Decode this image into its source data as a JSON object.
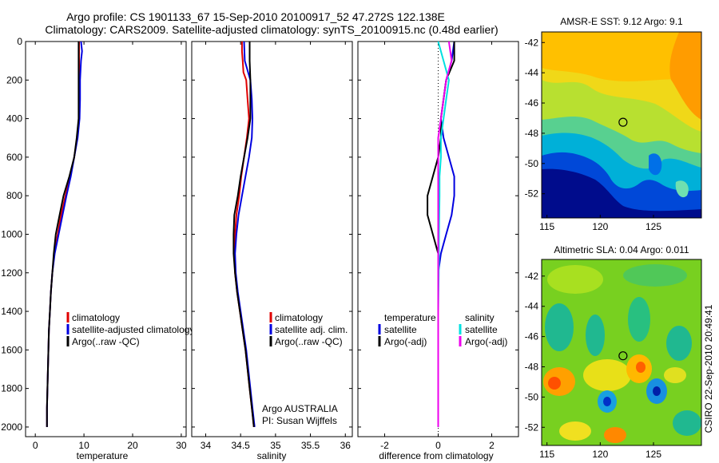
{
  "title_line1": "Argo profile: CS 1901133_67 15-Sep-2010 20100917_52 47.272S 122.138E",
  "title_line2": "Climatology: CARS2009. Satellite-adjusted climatology: synTS_20100915.nc (0.48d earlier)",
  "chart_data": [
    {
      "id": "temperature",
      "type": "line",
      "xlabel": "temperature",
      "ylabel": "",
      "xlim": [
        -2,
        31
      ],
      "ylim": [
        2050,
        0
      ],
      "y_reversed": true,
      "xticks": [
        0,
        10,
        20,
        30
      ],
      "yticks": [
        0,
        200,
        400,
        600,
        800,
        1000,
        1200,
        1400,
        1600,
        1800,
        2000
      ],
      "legend": {
        "placement": "lower-middle",
        "entries": [
          "climatology",
          "satellite-adjusted climatology",
          "Argo(..raw -QC)"
        ]
      },
      "series": [
        {
          "name": "climatology",
          "color": "#e00000",
          "points": [
            [
              9.0,
              0
            ],
            [
              9.0,
              100
            ],
            [
              9.0,
              200
            ],
            [
              9.0,
              300
            ],
            [
              9.0,
              400
            ],
            [
              8.6,
              500
            ],
            [
              8.0,
              600
            ],
            [
              7.2,
              700
            ],
            [
              6.2,
              800
            ],
            [
              5.3,
              900
            ],
            [
              4.6,
              1000
            ],
            [
              3.9,
              1100
            ],
            [
              3.5,
              1200
            ],
            [
              3.2,
              1300
            ],
            [
              3.0,
              1400
            ],
            [
              2.8,
              1500
            ],
            [
              2.7,
              1600
            ],
            [
              2.6,
              1700
            ],
            [
              2.5,
              1800
            ],
            [
              2.4,
              1900
            ],
            [
              2.4,
              2000
            ]
          ]
        },
        {
          "name": "satellite-adjusted climatology",
          "color": "#0000e0",
          "points": [
            [
              9.4,
              0
            ],
            [
              9.6,
              50
            ],
            [
              9.4,
              100
            ],
            [
              9.2,
              200
            ],
            [
              9.2,
              300
            ],
            [
              9.1,
              400
            ],
            [
              8.7,
              500
            ],
            [
              8.0,
              600
            ],
            [
              7.3,
              700
            ],
            [
              6.4,
              800
            ],
            [
              5.6,
              900
            ],
            [
              4.8,
              1000
            ],
            [
              4.0,
              1100
            ],
            [
              3.5,
              1200
            ],
            [
              3.2,
              1300
            ],
            [
              3.0,
              1400
            ],
            [
              2.8,
              1500
            ],
            [
              2.7,
              1600
            ],
            [
              2.6,
              1700
            ],
            [
              2.5,
              1800
            ],
            [
              2.4,
              1900
            ],
            [
              2.4,
              2000
            ]
          ]
        },
        {
          "name": "Argo(..raw -QC)",
          "color": "#000000",
          "points": [
            [
              8.9,
              0
            ],
            [
              8.9,
              200
            ],
            [
              8.9,
              400
            ],
            [
              8.5,
              500
            ],
            [
              8.0,
              600
            ],
            [
              7.0,
              700
            ],
            [
              5.8,
              800
            ],
            [
              5.0,
              900
            ],
            [
              4.2,
              1000
            ],
            [
              3.8,
              1100
            ],
            [
              3.5,
              1200
            ],
            [
              3.2,
              1300
            ],
            [
              3.0,
              1400
            ],
            [
              2.8,
              1500
            ],
            [
              2.7,
              1600
            ],
            [
              2.6,
              1700
            ],
            [
              2.5,
              1800
            ],
            [
              2.4,
              1900
            ],
            [
              2.4,
              2000
            ]
          ]
        }
      ]
    },
    {
      "id": "salinity",
      "type": "line",
      "xlabel": "salinity",
      "ylabel": "",
      "xlim": [
        33.8,
        36.1
      ],
      "ylim": [
        2050,
        0
      ],
      "y_reversed": true,
      "xticks": [
        34,
        34.5,
        35,
        35.5,
        36
      ],
      "yticks": [
        0,
        200,
        400,
        600,
        800,
        1000,
        1200,
        1400,
        1600,
        1800,
        2000
      ],
      "legend": {
        "placement": "lower-right",
        "entries": [
          "climatology",
          "satellite adj. clim.",
          "Argo(..raw -QC)"
        ]
      },
      "annotations": [
        "Argo AUSTRALIA",
        "PI: Susan Wijffels"
      ],
      "series": [
        {
          "name": "climatology",
          "color": "#e00000",
          "points": [
            [
              34.52,
              0
            ],
            [
              34.52,
              50
            ],
            [
              34.53,
              100
            ],
            [
              34.54,
              160
            ],
            [
              34.58,
              200
            ],
            [
              34.6,
              300
            ],
            [
              34.62,
              400
            ],
            [
              34.59,
              500
            ],
            [
              34.55,
              600
            ],
            [
              34.51,
              700
            ],
            [
              34.48,
              800
            ],
            [
              34.44,
              900
            ],
            [
              34.42,
              1000
            ],
            [
              34.41,
              1100
            ],
            [
              34.42,
              1200
            ],
            [
              34.45,
              1300
            ],
            [
              34.49,
              1400
            ],
            [
              34.53,
              1500
            ],
            [
              34.57,
              1600
            ],
            [
              34.6,
              1700
            ],
            [
              34.63,
              1800
            ],
            [
              34.66,
              1900
            ],
            [
              34.69,
              2000
            ]
          ]
        },
        {
          "name": "satellite adj. clim.",
          "color": "#0000e0",
          "points": [
            [
              34.55,
              0
            ],
            [
              34.56,
              100
            ],
            [
              34.64,
              200
            ],
            [
              34.66,
              300
            ],
            [
              34.67,
              400
            ],
            [
              34.66,
              500
            ],
            [
              34.62,
              600
            ],
            [
              34.57,
              700
            ],
            [
              34.52,
              800
            ],
            [
              34.47,
              900
            ],
            [
              34.44,
              1000
            ],
            [
              34.42,
              1100
            ],
            [
              34.43,
              1200
            ],
            [
              34.46,
              1300
            ],
            [
              34.5,
              1400
            ],
            [
              34.54,
              1500
            ],
            [
              34.58,
              1600
            ],
            [
              34.61,
              1700
            ],
            [
              34.64,
              1800
            ],
            [
              34.67,
              1900
            ],
            [
              34.7,
              2000
            ]
          ]
        },
        {
          "name": "Argo(..raw -QC)",
          "color": "#000000",
          "points": [
            [
              34.63,
              0
            ],
            [
              34.63,
              100
            ],
            [
              34.64,
              200
            ],
            [
              34.64,
              300
            ],
            [
              34.64,
              400
            ],
            [
              34.6,
              500
            ],
            [
              34.55,
              600
            ],
            [
              34.5,
              700
            ],
            [
              34.46,
              800
            ],
            [
              34.41,
              900
            ],
            [
              34.4,
              1000
            ],
            [
              34.4,
              1100
            ],
            [
              34.42,
              1200
            ],
            [
              34.45,
              1300
            ],
            [
              34.49,
              1400
            ],
            [
              34.53,
              1500
            ],
            [
              34.57,
              1600
            ],
            [
              34.6,
              1700
            ],
            [
              34.63,
              1800
            ],
            [
              34.66,
              1900
            ],
            [
              34.69,
              2000
            ]
          ]
        }
      ]
    },
    {
      "id": "difference",
      "type": "line",
      "xlabel": "difference from climatology",
      "ylabel": "",
      "xlim": [
        -3,
        3
      ],
      "ylim": [
        2050,
        0
      ],
      "y_reversed": true,
      "xticks": [
        -2,
        0,
        2
      ],
      "yticks": [
        0,
        200,
        400,
        600,
        800,
        1000,
        1200,
        1400,
        1600,
        1800,
        2000
      ],
      "legend": {
        "placement": "lower-middle",
        "entries": [
          "temperature",
          "satellite",
          "Argo(-adj)",
          "salinity",
          "satellite",
          "Argo(-adj)"
        ]
      },
      "series": [
        {
          "name": "temperature satellite",
          "color": "#0000e0",
          "points": [
            [
              0.6,
              0
            ],
            [
              0.5,
              100
            ],
            [
              0.3,
              200
            ],
            [
              0.2,
              300
            ],
            [
              0.1,
              400
            ],
            [
              0.2,
              500
            ],
            [
              0.4,
              600
            ],
            [
              0.6,
              700
            ],
            [
              0.6,
              800
            ],
            [
              0.5,
              900
            ],
            [
              0.3,
              1000
            ],
            [
              0.1,
              1100
            ],
            [
              0.0,
              1200
            ],
            [
              0.0,
              1400
            ],
            [
              0.0,
              2000
            ]
          ]
        },
        {
          "name": "temperature Argo(-adj)",
          "color": "#000000",
          "points": [
            [
              0.6,
              0
            ],
            [
              0.6,
              100
            ],
            [
              0.3,
              200
            ],
            [
              0.2,
              300
            ],
            [
              0.1,
              400
            ],
            [
              0.1,
              500
            ],
            [
              0.0,
              600
            ],
            [
              -0.2,
              700
            ],
            [
              -0.4,
              800
            ],
            [
              -0.4,
              900
            ],
            [
              -0.2,
              1000
            ],
            [
              0.0,
              1100
            ],
            [
              0.0,
              1200
            ],
            [
              0.0,
              1400
            ],
            [
              0.0,
              2000
            ]
          ]
        },
        {
          "name": "salinity satellite",
          "color": "#00e0e0",
          "points": [
            [
              0.0,
              0
            ],
            [
              0.2,
              100
            ],
            [
              0.4,
              200
            ],
            [
              0.3,
              300
            ],
            [
              0.2,
              400
            ],
            [
              0.1,
              500
            ],
            [
              0.1,
              600
            ],
            [
              0.05,
              700
            ],
            [
              0.05,
              800
            ],
            [
              0.03,
              1000
            ],
            [
              0.02,
              1200
            ],
            [
              0.0,
              1400
            ],
            [
              0.0,
              2000
            ]
          ]
        },
        {
          "name": "salinity Argo(-adj)",
          "color": "#ee00ee",
          "points": [
            [
              0.4,
              0
            ],
            [
              0.5,
              100
            ],
            [
              0.3,
              200
            ],
            [
              0.2,
              300
            ],
            [
              0.1,
              400
            ],
            [
              0.0,
              500
            ],
            [
              0.0,
              600
            ],
            [
              0.0,
              800
            ],
            [
              0.0,
              2000
            ]
          ]
        }
      ]
    },
    {
      "id": "sst-map",
      "type": "heatmap",
      "title": "AMSR-E SST: 9.12 Argo: 9.1",
      "xlim": [
        114.5,
        129.5
      ],
      "ylim": [
        -53.6,
        -41.3
      ],
      "xticks": [
        115,
        120,
        125
      ],
      "yticks": [
        -42,
        -44,
        -46,
        -48,
        -50,
        -52
      ],
      "marker": {
        "lon": 122.138,
        "lat": -47.272
      }
    },
    {
      "id": "sla-map",
      "type": "heatmap",
      "title": "Altimetric SLA: 0.04 Argo: 0.011",
      "xlim": [
        114.5,
        129.5
      ],
      "ylim": [
        -53.2,
        -40.9
      ],
      "xticks": [
        115,
        120,
        125
      ],
      "yticks": [
        -42,
        -44,
        -46,
        -48,
        -50,
        -52
      ],
      "marker": {
        "lon": 122.138,
        "lat": -47.272
      }
    }
  ],
  "legend_labels": {
    "temperature": [
      "climatology",
      "satellite-adjusted climatology",
      "Argo(..raw -QC)"
    ],
    "salinity": [
      "climatology",
      "satellite adj. clim.",
      "Argo(..raw -QC)"
    ],
    "difference_temp": [
      "temperature",
      "satellite",
      "Argo(-adj)"
    ],
    "difference_sal": [
      "salinity",
      "satellite",
      "Argo(-adj)"
    ]
  },
  "argo_note": [
    "Argo AUSTRALIA",
    "PI: Susan Wijffels"
  ],
  "side_note": "CSIRO 22-Sep-2010 20:49:41",
  "colors": {
    "red": "#e00000",
    "blue": "#0000e0",
    "black": "#000000",
    "cyan": "#00e0e0",
    "magenta": "#ee00ee"
  }
}
